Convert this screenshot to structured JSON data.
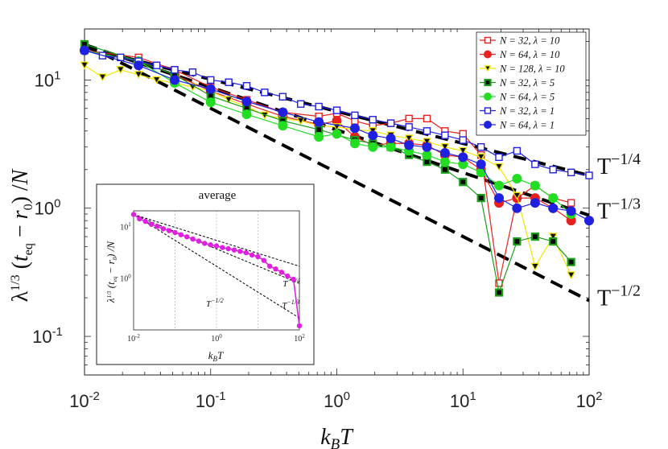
{
  "chart_data": {
    "type": "line",
    "xscale": "log",
    "yscale": "log",
    "xlim": [
      0.01,
      100
    ],
    "ylim": [
      0.05,
      25
    ],
    "xlabel": "k_B T",
    "ylabel": "λ^{1/3} (t_eq − r_0) / N",
    "x_ticks": [
      {
        "value": 0.01,
        "base": "10",
        "exp": "-2"
      },
      {
        "value": 0.1,
        "base": "10",
        "exp": "-1"
      },
      {
        "value": 1,
        "base": "10",
        "exp": "0"
      },
      {
        "value": 10,
        "base": "10",
        "exp": "1"
      },
      {
        "value": 100,
        "base": "10",
        "exp": "2"
      }
    ],
    "y_ticks": [
      {
        "value": 0.1,
        "base": "10",
        "exp": "-1"
      },
      {
        "value": 1,
        "base": "10",
        "exp": "0"
      },
      {
        "value": 10,
        "base": "10",
        "exp": "1"
      }
    ],
    "x": [
      0.01,
      0.0139,
      0.0193,
      0.0268,
      0.0373,
      0.0518,
      0.072,
      0.1,
      0.139,
      0.193,
      0.268,
      0.373,
      0.518,
      0.72,
      1.0,
      1.39,
      1.93,
      2.68,
      3.73,
      5.18,
      7.2,
      10.0,
      13.9,
      19.3,
      26.8,
      37.3,
      51.8,
      72.0,
      100.0
    ],
    "series": [
      {
        "name": "N = 32, λ = 10",
        "color": "#e8201f",
        "marker": "square",
        "filled": false,
        "values": [
          17,
          null,
          null,
          15,
          null,
          12,
          null,
          8.8,
          null,
          7.0,
          null,
          5.6,
          null,
          5.2,
          5.5,
          4.8,
          4.4,
          4.6,
          5.0,
          5.0,
          4.0,
          3.8,
          2.6,
          0.26,
          1.2,
          1.5,
          1.2,
          1.1,
          null
        ]
      },
      {
        "name": "N = 64, λ = 10",
        "color": "#e8201f",
        "marker": "circle",
        "filled": true,
        "values": [
          17,
          null,
          null,
          14,
          null,
          11,
          null,
          8.2,
          null,
          6.5,
          null,
          5.2,
          null,
          4.5,
          4.8,
          3.6,
          3.1,
          3.2,
          3.2,
          3.1,
          2.6,
          2.5,
          2.0,
          1.1,
          1.2,
          1.2,
          1.0,
          0.8,
          null
        ]
      },
      {
        "name": "N = 128, λ = 10",
        "color": "#f2e600",
        "marker": "triangle-down",
        "filled": true,
        "values": [
          13,
          10.5,
          12,
          11,
          10,
          9.5,
          8.8,
          8.2,
          7.0,
          6.2,
          5.3,
          5.0,
          4.8,
          4.4,
          4.3,
          4.1,
          4.0,
          3.7,
          3.5,
          3.3,
          3.0,
          2.8,
          2.5,
          2.1,
          1.25,
          0.35,
          0.6,
          0.3,
          null
        ]
      },
      {
        "name": "N = 32, λ = 5",
        "color": "#1a9e1a",
        "marker": "square",
        "filled": true,
        "values": [
          19,
          null,
          null,
          14,
          null,
          11,
          null,
          7.5,
          null,
          6.0,
          null,
          4.8,
          null,
          4.1,
          null,
          3.4,
          3.2,
          3.0,
          2.6,
          2.3,
          2.0,
          1.6,
          1.2,
          0.22,
          0.55,
          0.6,
          0.55,
          0.38,
          null
        ]
      },
      {
        "name": "N = 64, λ = 5",
        "color": "#22dd22",
        "marker": "circle",
        "filled": true,
        "values": [
          17,
          null,
          null,
          14,
          null,
          9.5,
          null,
          6.7,
          null,
          5.4,
          null,
          4.4,
          null,
          3.6,
          3.8,
          3.2,
          3.0,
          3.0,
          2.8,
          2.6,
          2.3,
          2.2,
          1.9,
          1.5,
          1.7,
          1.5,
          1.2,
          0.9,
          null
        ]
      },
      {
        "name": "N = 32, λ = 1",
        "color": "#2020e0",
        "marker": "square",
        "filled": false,
        "values": [
          17,
          15.5,
          15,
          14,
          13,
          12,
          11.5,
          10,
          9.6,
          9.0,
          8.0,
          7.4,
          6.5,
          6.2,
          5.8,
          5.3,
          4.9,
          4.6,
          4.3,
          4.0,
          3.7,
          3.4,
          3.0,
          2.5,
          2.8,
          2.2,
          2.0,
          1.9,
          1.8
        ]
      },
      {
        "name": "N = 64, λ = 1",
        "color": "#2020e0",
        "marker": "circle",
        "filled": true,
        "values": [
          17,
          null,
          null,
          13,
          null,
          10,
          null,
          8.5,
          null,
          6.8,
          null,
          5.6,
          null,
          4.7,
          null,
          4.2,
          3.7,
          3.5,
          3.1,
          3.0,
          2.7,
          2.5,
          2.2,
          1.2,
          1.0,
          1.1,
          1.0,
          0.95,
          0.8
        ]
      }
    ],
    "reference_lines": [
      {
        "label_base": "T",
        "label_exp": "−1/4",
        "slope": -0.25,
        "anchor_x": 100,
        "anchor_y": 1.8
      },
      {
        "label_base": "T",
        "label_exp": "−1/3",
        "slope": -0.333,
        "anchor_x": 100,
        "anchor_y": 0.88
      },
      {
        "label_base": "T",
        "label_exp": "−1/2",
        "slope": -0.5,
        "anchor_x": 100,
        "anchor_y": 0.19
      }
    ],
    "inset": {
      "title": "average",
      "type": "line",
      "color": "#e020e0",
      "xlim": [
        0.01,
        100
      ],
      "ylim": [
        0.1,
        20
      ],
      "xlabel": "k_B T",
      "ylabel": "λ^{1/3} (t_eq − r_0) / N",
      "x_ticks": [
        {
          "value": 0.01,
          "base": "10",
          "exp": "-2"
        },
        {
          "value": 1,
          "base": "10",
          "exp": "0"
        },
        {
          "value": 100,
          "base": "10",
          "exp": "2"
        }
      ],
      "y_ticks": [
        {
          "value": 1,
          "base": "10",
          "exp": "0"
        },
        {
          "value": 10,
          "base": "10",
          "exp": "1"
        }
      ],
      "x": [
        0.01,
        0.0139,
        0.0193,
        0.0268,
        0.0373,
        0.0518,
        0.072,
        0.1,
        0.139,
        0.193,
        0.268,
        0.373,
        0.518,
        0.72,
        1.0,
        1.39,
        1.93,
        2.68,
        3.73,
        5.18,
        7.2,
        10.0,
        13.9,
        19.3,
        26.8,
        37.3,
        51.8,
        72.0,
        100.0
      ],
      "values": [
        17,
        14,
        12.5,
        11,
        10,
        9,
        8.3,
        7.6,
        6.9,
        6.3,
        5.7,
        5.2,
        4.7,
        4.4,
        4.2,
        3.9,
        3.7,
        3.5,
        3.3,
        3.1,
        2.8,
        2.6,
        2.2,
        1.7,
        1.5,
        1.3,
        1.1,
        0.95,
        0.12
      ],
      "reference_lines": [
        {
          "label_base": "T",
          "label_exp": "−1/4",
          "slope": -0.25,
          "anchor_x": 0.01,
          "anchor_y": 17
        },
        {
          "label_base": "T",
          "label_exp": "−1/3",
          "slope": -0.333,
          "anchor_x": 0.01,
          "anchor_y": 17
        },
        {
          "label_base": "T",
          "label_exp": "−1/2",
          "slope": -0.5,
          "anchor_x": 0.01,
          "anchor_y": 17
        }
      ]
    }
  }
}
